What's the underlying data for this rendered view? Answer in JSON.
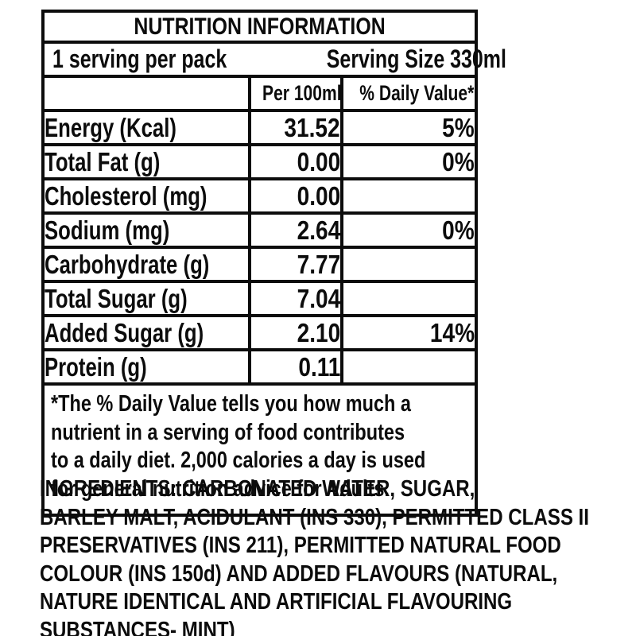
{
  "nutrition_table": {
    "title": "NUTRITION INFORMATION",
    "servings_per_pack": "1 serving per pack",
    "serving_size": "Serving Size 330ml",
    "columns": {
      "nutrient": "",
      "per_100ml": "Per 100ml",
      "daily_value": "% Daily Value*"
    },
    "rows": [
      {
        "name": "Energy (Kcal)",
        "per_100ml": "31.52",
        "daily_value": "5%"
      },
      {
        "name": "Total Fat (g)",
        "per_100ml": "0.00",
        "daily_value": "0%"
      },
      {
        "name": "Cholesterol (mg)",
        "per_100ml": "0.00",
        "daily_value": ""
      },
      {
        "name": "Sodium (mg)",
        "per_100ml": "2.64",
        "daily_value": "0%"
      },
      {
        "name": "Carbohydrate (g)",
        "per_100ml": "7.77",
        "daily_value": ""
      },
      {
        "name": "Total Sugar (g)",
        "per_100ml": "7.04",
        "daily_value": ""
      },
      {
        "name": "Added Sugar (g)",
        "per_100ml": "2.10",
        "daily_value": "14%"
      },
      {
        "name": "Protein (g)",
        "per_100ml": "0.11",
        "daily_value": ""
      }
    ],
    "footnote_lines": [
      "*The % Daily Value tells you how much a",
      "nutrient in a serving of food contributes",
      "to a daily diet. 2,000 calories a day is used",
      "for general nutrition advice for Adults."
    ]
  },
  "ingredients": {
    "lines": [
      "INGREDIENTS: CARBONATED WATER, SUGAR,",
      "BARLEY MALT, ACIDULANT (INS 330), PERMITTED CLASS II",
      "PRESERVATIVES (INS 211), PERMITTED NATURAL FOOD",
      "COLOUR (INS 150d) AND ADDED FLAVOURS (NATURAL,",
      "NATURE IDENTICAL AND ARTIFICIAL FLAVOURING",
      "SUBSTANCES- MINT)"
    ]
  },
  "colors": {
    "text": "#0c0c0c",
    "border": "#0c0c0c",
    "background": "#ffffff"
  }
}
